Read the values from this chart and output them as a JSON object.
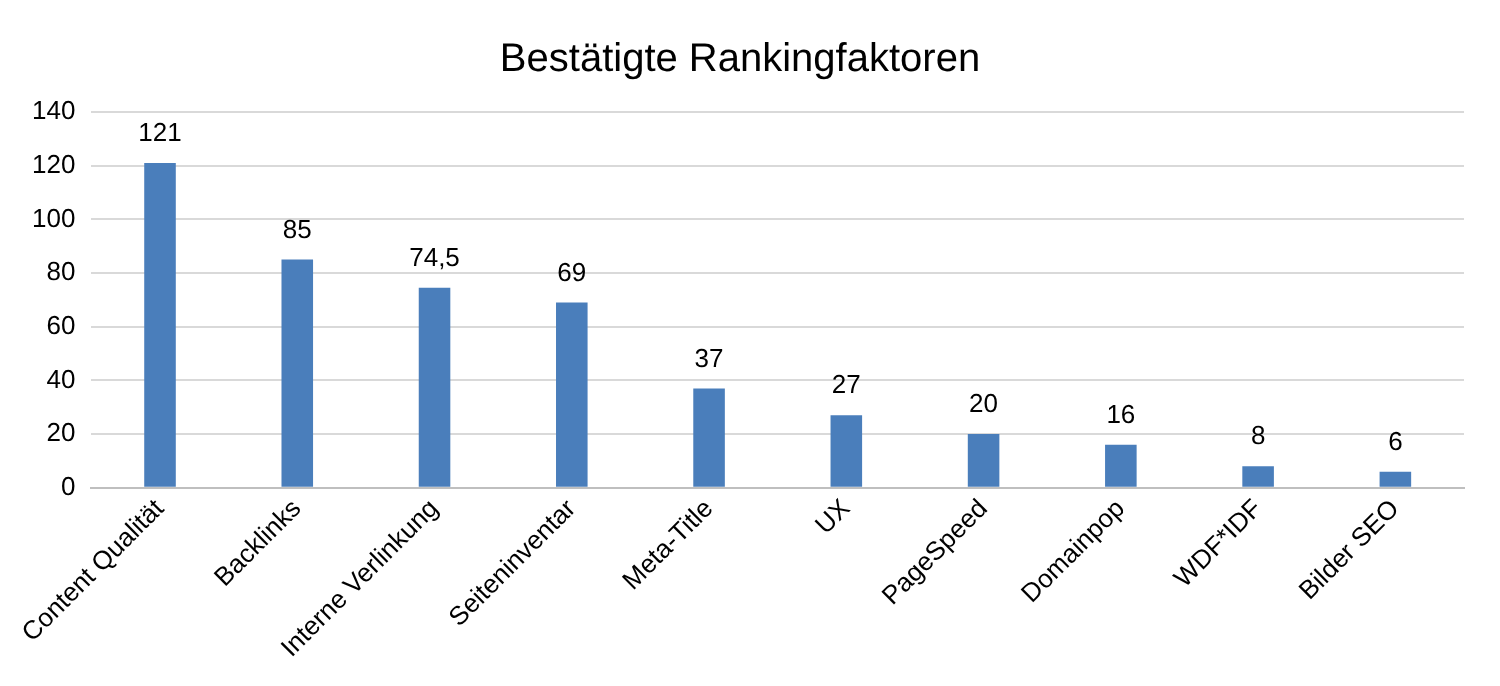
{
  "chart_data": {
    "type": "bar",
    "title": "Bestätigte Rankingfaktoren",
    "categories": [
      "Content Qualität",
      "Backlinks",
      "Interne Verlinkung",
      "Seiteninventar",
      "Meta-Title",
      "UX",
      "PageSpeed",
      "Domainpop",
      "WDF*IDF",
      "Bilder SEO"
    ],
    "values": [
      121,
      85,
      74.5,
      69,
      37,
      27,
      20,
      16,
      8,
      6
    ],
    "value_labels": [
      "121",
      "85",
      "74,5",
      "69",
      "37",
      "27",
      "20",
      "16",
      "8",
      "6"
    ],
    "color": "#4a7ebb",
    "ylim": [
      0,
      140
    ],
    "yticks": [
      0,
      20,
      40,
      60,
      80,
      100,
      120,
      140
    ],
    "grid": "y"
  }
}
